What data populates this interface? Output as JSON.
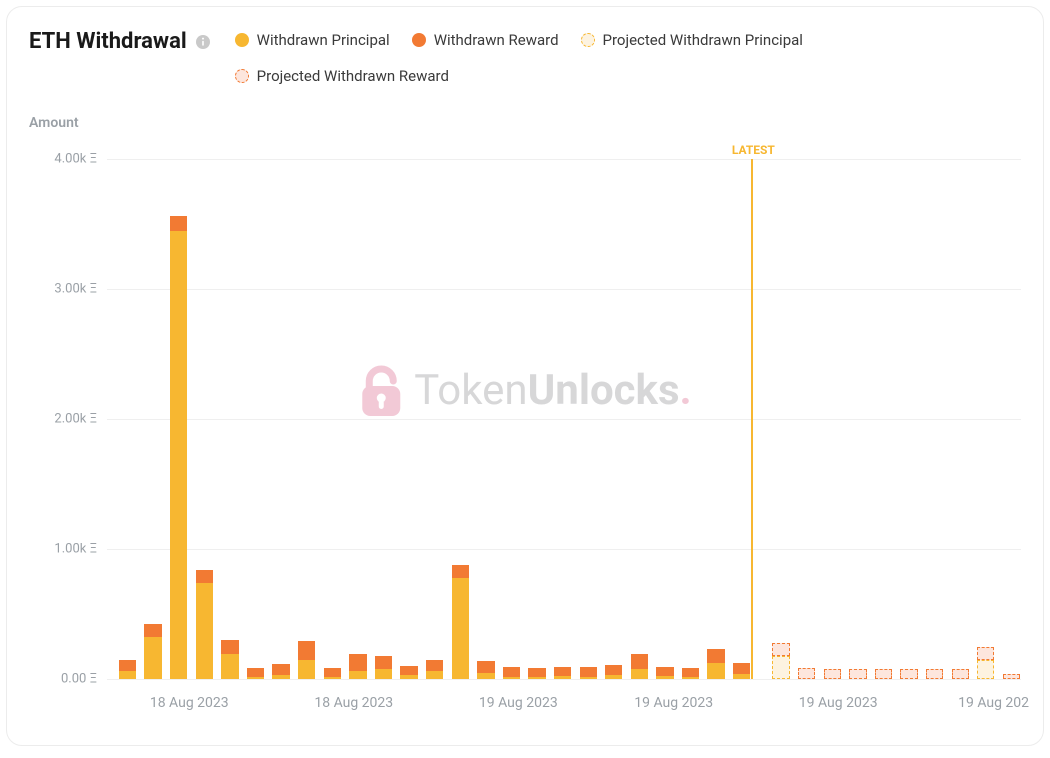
{
  "title": "ETH Withdrawal",
  "yaxis_label": "Amount",
  "latest_label": "LATEST",
  "watermark": {
    "text_part1": "Token",
    "text_part2": "Unlocks",
    "dot": "."
  },
  "colors": {
    "principal": "#f7b731",
    "reward": "#f27a33",
    "proj_principal_fill": "#fdf3e0",
    "proj_principal_stroke": "#f7b731",
    "proj_reward_fill": "#fde6dd",
    "proj_reward_stroke": "#f27a33",
    "grid": "#efefef",
    "tick_text": "#9aa0a6",
    "latest_line": "#f7b731",
    "latest_text": "#f7b731",
    "info_icon": "#c9c9c9",
    "wm_lock": "#e389a6"
  },
  "legend": [
    {
      "label": "Withdrawn Principal",
      "kind": "solid",
      "color_key": "principal"
    },
    {
      "label": "Withdrawn Reward",
      "kind": "solid",
      "color_key": "reward"
    },
    {
      "label": "Projected Withdrawn Principal",
      "kind": "dashed",
      "fill_key": "proj_principal_fill",
      "stroke_key": "proj_principal_stroke"
    },
    {
      "label": "Projected Withdrawn Reward",
      "kind": "dashed",
      "fill_key": "proj_reward_fill",
      "stroke_key": "proj_reward_stroke"
    }
  ],
  "y": {
    "min": 0,
    "max": 4000,
    "ticks": [
      0,
      1000,
      2000,
      3000,
      4000
    ],
    "tick_labels": [
      "0.00 Ξ",
      "1.00k Ξ",
      "2.00k Ξ",
      "3.00k Ξ",
      "4.00k Ξ"
    ]
  },
  "x_ticks": [
    {
      "label": "18 Aug 2023",
      "pos_pct": 9
    },
    {
      "label": "18 Aug 2023",
      "pos_pct": 27
    },
    {
      "label": "19 Aug 2023",
      "pos_pct": 45
    },
    {
      "label": "19 Aug 2023",
      "pos_pct": 62
    },
    {
      "label": "19 Aug 2023",
      "pos_pct": 80
    },
    {
      "label": "19 Aug 202",
      "pos_pct": 97
    }
  ],
  "latest_pos_pct": 70.5,
  "bar_width_pct": 1.9,
  "bar_gap_pct": 0.9,
  "bars": [
    {
      "principal": 60,
      "reward": 90
    },
    {
      "principal": 320,
      "reward": 105
    },
    {
      "principal": 3450,
      "reward": 110
    },
    {
      "principal": 740,
      "reward": 100
    },
    {
      "principal": 190,
      "reward": 110
    },
    {
      "principal": 15,
      "reward": 70
    },
    {
      "principal": 30,
      "reward": 85
    },
    {
      "principal": 150,
      "reward": 140
    },
    {
      "principal": 15,
      "reward": 70
    },
    {
      "principal": 60,
      "reward": 135
    },
    {
      "principal": 80,
      "reward": 100
    },
    {
      "principal": 30,
      "reward": 70
    },
    {
      "principal": 60,
      "reward": 90
    },
    {
      "principal": 780,
      "reward": 100
    },
    {
      "principal": 45,
      "reward": 90
    },
    {
      "principal": 15,
      "reward": 75
    },
    {
      "principal": 15,
      "reward": 70
    },
    {
      "principal": 20,
      "reward": 72
    },
    {
      "principal": 15,
      "reward": 75
    },
    {
      "principal": 30,
      "reward": 80
    },
    {
      "principal": 80,
      "reward": 110
    },
    {
      "principal": 20,
      "reward": 72
    },
    {
      "principal": 15,
      "reward": 70
    },
    {
      "principal": 120,
      "reward": 110
    },
    {
      "principal": 40,
      "reward": 80
    },
    {
      "proj_principal": 175,
      "proj_reward": 105
    },
    {
      "proj_principal": 0,
      "proj_reward": 82
    },
    {
      "proj_principal": 0,
      "proj_reward": 80
    },
    {
      "proj_principal": 0,
      "proj_reward": 80
    },
    {
      "proj_principal": 0,
      "proj_reward": 78
    },
    {
      "proj_principal": 0,
      "proj_reward": 78
    },
    {
      "proj_principal": 0,
      "proj_reward": 78
    },
    {
      "proj_principal": 0,
      "proj_reward": 75
    },
    {
      "proj_principal": 150,
      "proj_reward": 100
    },
    {
      "proj_principal": 0,
      "proj_reward": 40
    }
  ]
}
